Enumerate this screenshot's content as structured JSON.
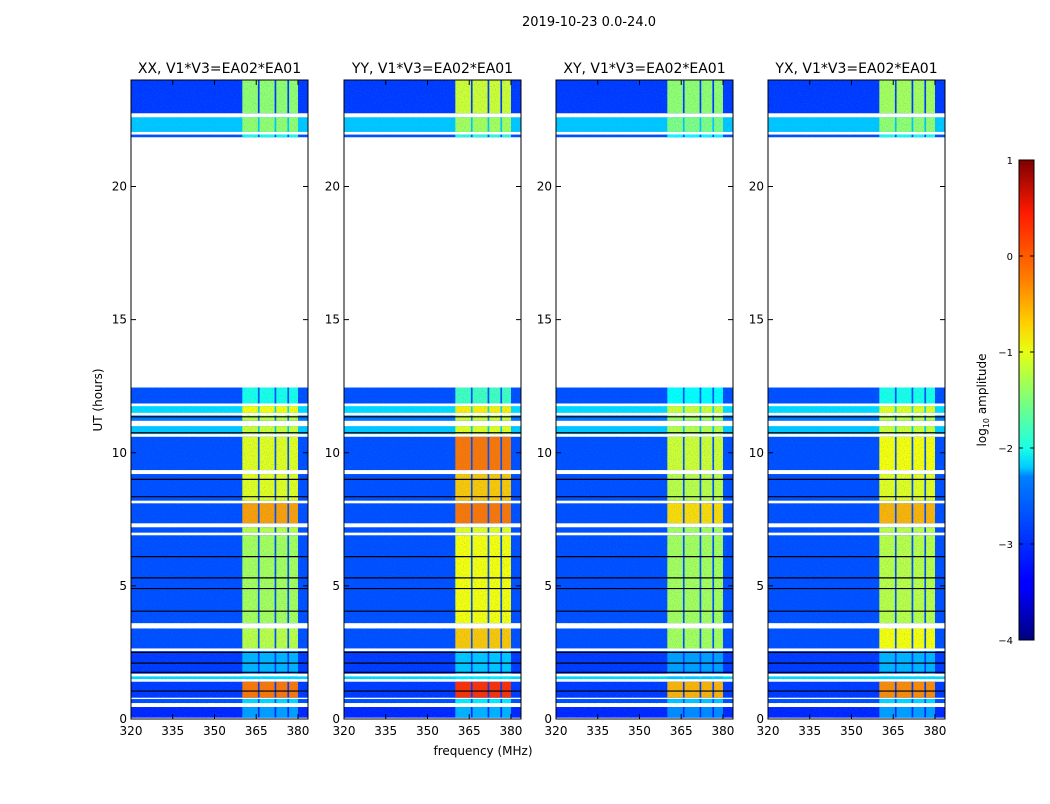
{
  "chart_data": {
    "type": "heatmap",
    "suptitle": "2019-10-23 0.0-24.0",
    "xlabel": "frequency (MHz)",
    "ylabel": "UT (hours)",
    "xlim": [
      320,
      383.6
    ],
    "ylim": [
      0,
      24
    ],
    "xticks": [
      "320",
      "335",
      "350",
      "365",
      "380"
    ],
    "xtick_values": [
      320,
      335,
      350,
      365,
      380
    ],
    "yticks": [
      "0",
      "5",
      "10",
      "15",
      "20"
    ],
    "ytick_values": [
      0,
      5,
      10,
      15,
      20
    ],
    "colorbar": {
      "label_main": "log",
      "label_sub": "10",
      "label_rest": " amplitude",
      "range": [
        -4,
        1
      ],
      "ticks": [
        "1",
        "0",
        "−1",
        "−2",
        "−3",
        "−4"
      ],
      "tick_values": [
        1,
        0,
        -1,
        -2,
        -3,
        -4
      ],
      "colormap": "jet"
    },
    "band_channels_mhz": [
      [
        360,
        365.6
      ],
      [
        366.2,
        371.6
      ],
      [
        372.2,
        376.2
      ],
      [
        376.8,
        380
      ]
    ],
    "segments_hours": [
      [
        0.05,
        0.45
      ],
      [
        0.6,
        0.75
      ],
      [
        0.8,
        1.4
      ],
      [
        1.5,
        1.6
      ],
      [
        1.7,
        2.55
      ],
      [
        2.65,
        3.4
      ],
      [
        3.6,
        6.9
      ],
      [
        7.0,
        7.2
      ],
      [
        7.35,
        8.1
      ],
      [
        8.2,
        9.2
      ],
      [
        9.35,
        10.6
      ],
      [
        10.7,
        11.0
      ],
      [
        11.2,
        11.4
      ],
      [
        11.5,
        11.75
      ],
      [
        11.85,
        12.45
      ],
      [
        21.85,
        21.95
      ],
      [
        22.05,
        22.6
      ],
      [
        22.75,
        24.0
      ]
    ],
    "background_level": [
      -3.2,
      -3.0,
      -3.1,
      -2.3,
      -3.1,
      -3.0,
      -3.0,
      -3.0,
      -3.0,
      -3.0,
      -3.0,
      -2.4,
      -2.8,
      -2.3,
      -3.0,
      -3.0,
      -2.4,
      -3.1
    ],
    "flagged_lines_hours": [
      1.05,
      1.75,
      2.1,
      2.5,
      4.05,
      4.9,
      5.3,
      6.1,
      8.35,
      9.0,
      10.75,
      11.35
    ],
    "panels": [
      {
        "title": "XX, V1*V3=EA02*EA01",
        "band_level": [
          -2.6,
          -2.3,
          -0.2,
          -2.3,
          -2.5,
          -1.2,
          -1.3,
          -1.2,
          -0.4,
          -1.0,
          -1.0,
          -1.1,
          -1.2,
          -0.9,
          -2.0,
          -2.0,
          -1.4,
          -1.4
        ]
      },
      {
        "title": "YY, V1*V3=EA02*EA01",
        "band_level": [
          -2.5,
          -2.2,
          0.15,
          -2.2,
          -2.4,
          -0.6,
          -0.9,
          -1.0,
          -0.2,
          -0.6,
          -0.2,
          -1.0,
          -1.1,
          -0.8,
          -1.8,
          -1.9,
          -1.3,
          -1.1
        ]
      },
      {
        "title": "XY, V1*V3=EA02*EA01",
        "band_level": [
          -2.7,
          -2.4,
          -0.5,
          -2.4,
          -2.6,
          -1.3,
          -1.3,
          -1.3,
          -0.7,
          -1.2,
          -1.1,
          -1.2,
          -1.3,
          -1.1,
          -2.1,
          -2.1,
          -1.5,
          -1.4
        ]
      },
      {
        "title": "YX, V1*V3=EA02*EA01",
        "band_level": [
          -2.6,
          -2.3,
          -0.3,
          -2.3,
          -2.5,
          -0.9,
          -1.2,
          -1.2,
          -0.5,
          -1.0,
          -0.9,
          -1.1,
          -1.2,
          -1.0,
          -2.0,
          -2.0,
          -1.4,
          -1.3
        ]
      }
    ]
  }
}
